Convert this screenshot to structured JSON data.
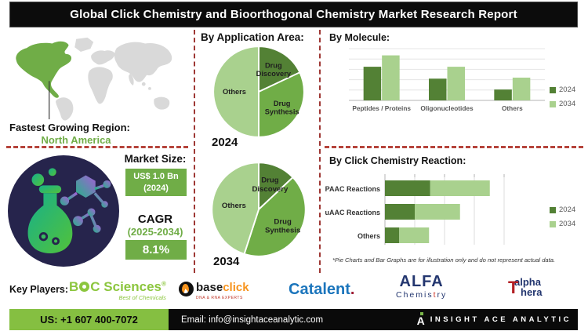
{
  "title": "Global Click Chemistry and Bioorthogonal Chemistry Market Research Report",
  "region": {
    "label": "Fastest Growing Region:",
    "value": "North America"
  },
  "market": {
    "heading": "Market Size:",
    "value_line1": "US$ 1.0 Bn",
    "value_line2": "(2024)",
    "cagr_heading": "CAGR",
    "cagr_period": "(2025-2034)",
    "cagr_value": "8.1%"
  },
  "sections": {
    "application_heading": "By Application Area:",
    "molecule_heading": "By Molecule:",
    "reaction_heading": "By Click Chemistry Reaction:"
  },
  "footnote": "*Pie Charts and Bar Graphs are for illustration only and do not represent actual data.",
  "key_players": {
    "label": "Key Players:",
    "players": [
      {
        "name": "BOC Sciences",
        "seg1": "B",
        "seg2": "C Sciences",
        "reg": "®",
        "tagline": "Best of Chemicals"
      },
      {
        "name": "baseclick",
        "seg1": "base",
        "seg2": "click",
        "tagline": "DNA & RNA EXPERTS"
      },
      {
        "name": "Catalent",
        "seg1": "Catalent",
        "seg2": "."
      },
      {
        "name": "ALFA Chemistry",
        "seg1": "ALFA",
        "seg2": "Chemis",
        "seg3": "t",
        "seg4": "ry"
      },
      {
        "name": "alphaThera",
        "seg1": "alpha",
        "seg2": "T",
        "seg3": "hera"
      }
    ]
  },
  "footer": {
    "phone": "US: +1 607 400-7072",
    "email": "Email: info@insightaceanalytic.com",
    "brand": "INSIGHT ACE ANALYTIC"
  },
  "colors": {
    "green_dark": "#538135",
    "green_mid": "#70ad47",
    "green_light": "#a9d18e",
    "footer_green": "#85bf41",
    "dashed_red": "#b5443b",
    "circle_navy": "#26244c"
  },
  "chart_data": [
    {
      "type": "pie",
      "year": "2024",
      "title": "By Application Area: 2024",
      "labels": [
        "Drug Discovery",
        "Drug Synthesis",
        "Others"
      ],
      "values": [
        18,
        32,
        50
      ],
      "colors": [
        "#538135",
        "#70ad47",
        "#a9d18e"
      ]
    },
    {
      "type": "pie",
      "year": "2034",
      "title": "By Application Area: 2034",
      "labels": [
        "Drug Discovery",
        "Drug Synthesis",
        "Others"
      ],
      "values": [
        13,
        42,
        45
      ],
      "colors": [
        "#538135",
        "#70ad47",
        "#a9d18e"
      ]
    },
    {
      "type": "bar",
      "title": "By Molecule:",
      "categories": [
        "Peptides / Proteins",
        "Oligonucleotides",
        "Others"
      ],
      "series": [
        {
          "name": "2024",
          "color": "#538135",
          "values": [
            65,
            42,
            21
          ]
        },
        {
          "name": "2034",
          "color": "#a9d18e",
          "values": [
            87,
            65,
            44
          ]
        }
      ],
      "ylim": [
        0,
        100
      ],
      "grid_step": 20,
      "legend_position": "right"
    },
    {
      "type": "bar-horizontal-stacked",
      "title": "By Click Chemistry Reaction:",
      "categories": [
        "SPAAC Reactions",
        "CuAAC Reactions",
        "Others"
      ],
      "series": [
        {
          "name": "2024",
          "color": "#538135",
          "values": [
            38,
            25,
            12
          ]
        },
        {
          "name": "2034",
          "color": "#a9d18e",
          "values": [
            50,
            38,
            25
          ]
        }
      ],
      "xlim": [
        0,
        100
      ],
      "grid_step": 25,
      "legend_position": "right"
    }
  ]
}
